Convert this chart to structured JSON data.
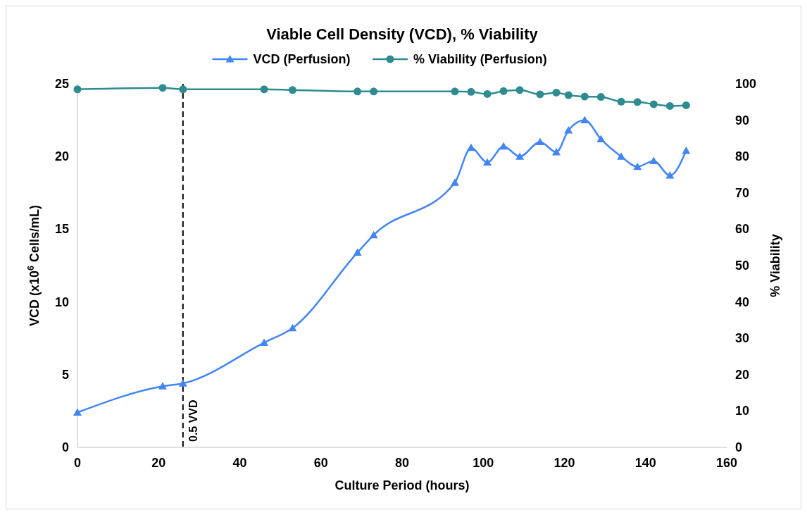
{
  "chart_data": {
    "type": "line",
    "title": "Viable Cell Density (VCD), % Viability",
    "xlabel": "Culture Period (hours)",
    "ylabel": "VCD (x10$^{6}$ Cells/mL)",
    "y2label": "% Viability",
    "xlim": [
      0,
      160
    ],
    "xticks": [
      0,
      20,
      40,
      60,
      80,
      100,
      120,
      140,
      160
    ],
    "ylim": [
      0,
      25
    ],
    "yticks": [
      0,
      5,
      10,
      15,
      20,
      25
    ],
    "y2lim": [
      0,
      100
    ],
    "y2ticks": [
      0,
      10,
      20,
      30,
      40,
      50,
      60,
      70,
      80,
      90,
      100
    ],
    "legend": "top",
    "grid": false,
    "line_style": "solid",
    "series": [
      {
        "name": "VCD (Perfusion)",
        "color": "#4285f4",
        "marker": "triangle",
        "x": [
          0,
          21,
          26,
          46,
          53,
          69,
          73,
          93,
          97,
          101,
          105,
          109,
          114,
          118,
          121,
          125,
          129,
          134,
          138,
          142,
          146,
          150
        ],
        "values": [
          2.4,
          4.2,
          4.4,
          7.2,
          8.2,
          13.4,
          14.6,
          18.2,
          20.6,
          19.6,
          20.7,
          20.0,
          21.0,
          20.3,
          21.8,
          22.5,
          21.2,
          20.0,
          19.3,
          19.7,
          18.7,
          20.4
        ]
      },
      {
        "name": "% Viability (Perfusion)",
        "color": "#2e8b8f",
        "marker": "circle",
        "axis": "y2",
        "x": [
          0,
          21,
          26,
          46,
          53,
          69,
          73,
          93,
          97,
          101,
          105,
          109,
          114,
          118,
          121,
          125,
          129,
          134,
          138,
          142,
          146,
          150
        ],
        "values": [
          98.5,
          98.9,
          98.5,
          98.5,
          98.3,
          97.9,
          97.9,
          97.9,
          97.8,
          97.2,
          98.0,
          98.3,
          97.1,
          97.6,
          96.9,
          96.5,
          96.4,
          95.1,
          95.0,
          94.4,
          93.9,
          94.1
        ]
      }
    ],
    "ref_lines": [
      {
        "axis": "x",
        "value": 26,
        "label": "0.5 VVD",
        "color": "#000000",
        "line_style": "dashed"
      }
    ]
  }
}
